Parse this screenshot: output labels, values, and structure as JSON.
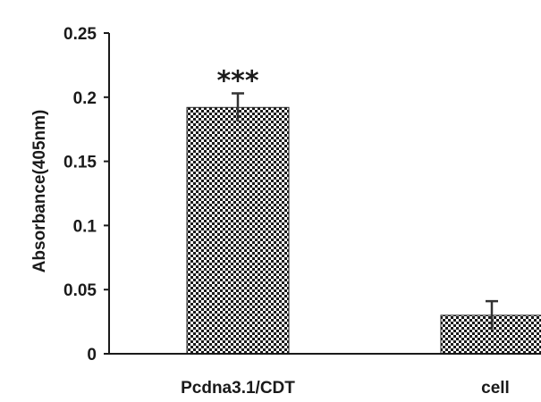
{
  "chart_data": {
    "type": "bar",
    "title": "",
    "xlabel": "",
    "ylabel": "Absorbance(405nm)",
    "ylim": [
      0,
      0.25
    ],
    "yticks": [
      "0",
      "0.05",
      "0.1",
      "0.15",
      "0.2",
      "0.25"
    ],
    "ytick_values": [
      0,
      0.05,
      0.1,
      0.15,
      0.2,
      0.25
    ],
    "categories": [
      "Pcdna3.1/CDT",
      "cell"
    ],
    "values": [
      0.192,
      0.03
    ],
    "errors": [
      0.011,
      0.011
    ],
    "annotations": [
      "***",
      ""
    ],
    "bar_pattern": "checkerboard",
    "bar_colors": [
      "#1a1a1a",
      "#ffffff"
    ],
    "grid": false,
    "legend": "none"
  }
}
